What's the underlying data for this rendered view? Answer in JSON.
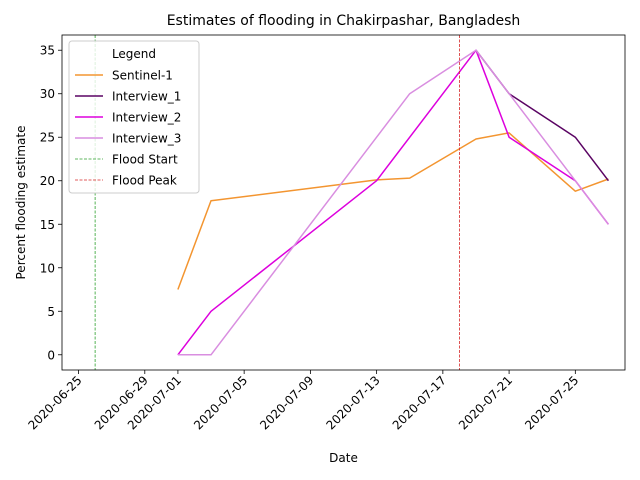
{
  "chart_data": {
    "type": "line",
    "title": "Estimates of flooding in Chakirpashar, Bangladesh",
    "xlabel": "Date",
    "ylabel": "Percent flooding estimate",
    "xlim": [
      "2020-06-24",
      "2020-07-28"
    ],
    "ylim": [
      -1.75,
      36.75
    ],
    "x_ticks": [
      "2020-06-25",
      "2020-06-29",
      "2020-07-01",
      "2020-07-05",
      "2020-07-09",
      "2020-07-13",
      "2020-07-17",
      "2020-07-21",
      "2020-07-25"
    ],
    "y_ticks": [
      0,
      5,
      10,
      15,
      20,
      25,
      30,
      35
    ],
    "grid": false,
    "legend": {
      "title": "Legend",
      "placement": "top-left"
    },
    "series": [
      {
        "name": "Sentinel-1",
        "color": "#f39530",
        "x": [
          "2020-07-01",
          "2020-07-03",
          "2020-07-13",
          "2020-07-15",
          "2020-07-19",
          "2020-07-21",
          "2020-07-25",
          "2020-07-27"
        ],
        "y": [
          7.5,
          17.7,
          20.1,
          20.3,
          24.8,
          25.5,
          18.8,
          20.2
        ]
      },
      {
        "name": "Interview_1",
        "color": "#5a0463",
        "x": [
          "2020-07-19",
          "2020-07-21",
          "2020-07-25",
          "2020-07-27"
        ],
        "y": [
          35,
          30,
          25,
          20
        ]
      },
      {
        "name": "Interview_2",
        "color": "#dd00dd",
        "x": [
          "2020-07-01",
          "2020-07-03",
          "2020-07-13",
          "2020-07-19",
          "2020-07-21",
          "2020-07-25",
          "2020-07-27"
        ],
        "y": [
          0,
          5,
          20,
          35,
          25,
          20,
          15
        ]
      },
      {
        "name": "Interview_3",
        "color": "#d98ee0",
        "x": [
          "2020-07-01",
          "2020-07-03",
          "2020-07-13",
          "2020-07-15",
          "2020-07-19",
          "2020-07-21",
          "2020-07-25",
          "2020-07-27"
        ],
        "y": [
          0,
          0,
          25,
          30,
          35,
          30,
          20,
          15
        ]
      }
    ],
    "vlines": [
      {
        "name": "Flood Start",
        "x": "2020-06-26",
        "color": "#2ca02c",
        "style": "dashed"
      },
      {
        "name": "Flood Peak",
        "x": "2020-07-18",
        "color": "#d62728",
        "style": "dashed"
      }
    ]
  }
}
